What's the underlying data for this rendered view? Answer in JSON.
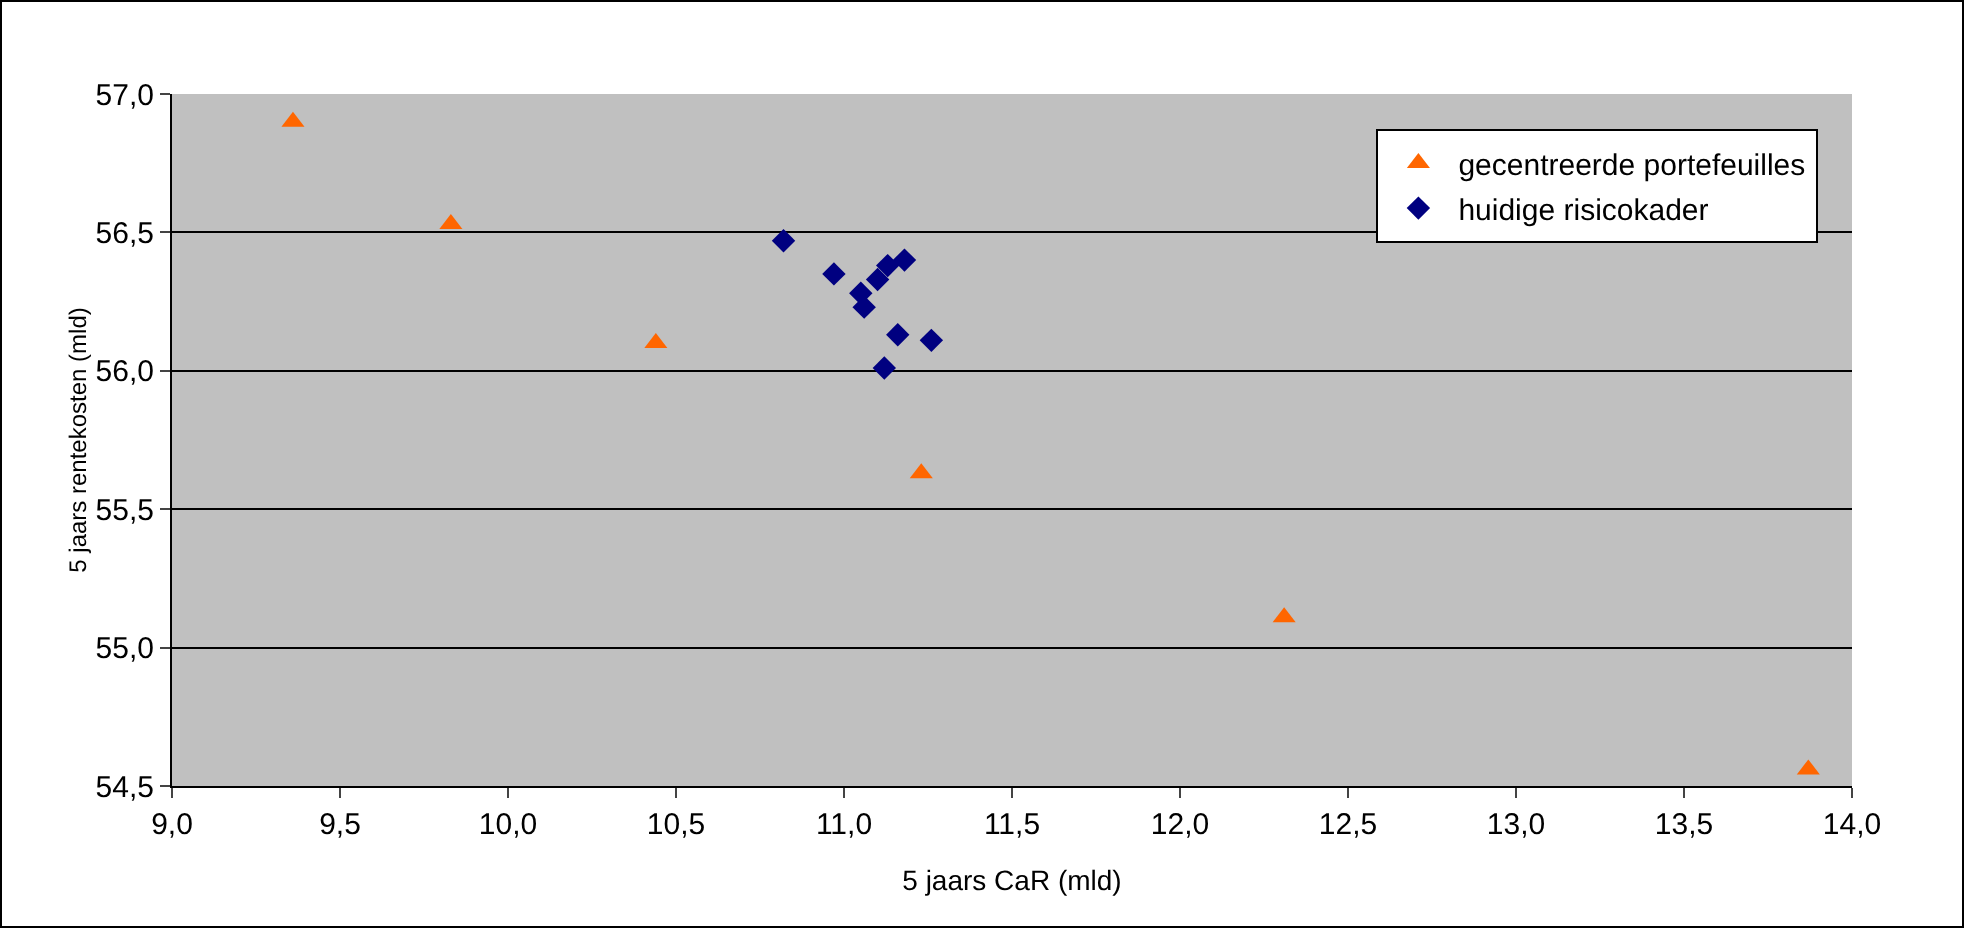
{
  "chart_data": {
    "type": "scatter",
    "xlabel": "5 jaars CaR (mld)",
    "ylabel": "5 jaars rentekosten (mld)",
    "xlim": [
      9,
      14
    ],
    "xticks": [
      {
        "value": 9,
        "label": "9,0"
      },
      {
        "value": 9.5,
        "label": "9,5"
      },
      {
        "value": 10,
        "label": "10,0"
      },
      {
        "value": 10.5,
        "label": "10,5"
      },
      {
        "value": 11,
        "label": "11,0"
      },
      {
        "value": 11.5,
        "label": "11,5"
      },
      {
        "value": 12,
        "label": "12,0"
      },
      {
        "value": 12.5,
        "label": "12,5"
      },
      {
        "value": 13,
        "label": "13,0"
      },
      {
        "value": 13.5,
        "label": "13,5"
      },
      {
        "value": 14,
        "label": "14,0"
      }
    ],
    "ylim": [
      54.5,
      57
    ],
    "yticks": [
      {
        "value": 54.5,
        "label": "54,5"
      },
      {
        "value": 55,
        "label": "55,0"
      },
      {
        "value": 55.5,
        "label": "55,5"
      },
      {
        "value": 56,
        "label": "56,0"
      },
      {
        "value": 56.5,
        "label": "56,5"
      },
      {
        "value": 57,
        "label": "57,0"
      }
    ],
    "grid": "y",
    "legend": "top right",
    "series": [
      {
        "name": "gecentreerde portefeuilles",
        "color": "#ff6600",
        "marker": "triangle",
        "x": [
          9.36,
          9.83,
          10.44,
          11.23,
          12.31,
          13.87
        ],
        "values": [
          56.9,
          56.53,
          56.1,
          55.63,
          55.11,
          54.56
        ]
      },
      {
        "name": "huidige risicokader",
        "color": "#000080",
        "marker": "diamond",
        "x": [
          10.82,
          10.97,
          11.05,
          11.06,
          11.1,
          11.13,
          11.18,
          11.16,
          11.12,
          11.26
        ],
        "values": [
          56.47,
          56.35,
          56.28,
          56.23,
          56.33,
          56.38,
          56.4,
          56.13,
          56.01,
          56.11
        ]
      }
    ]
  }
}
